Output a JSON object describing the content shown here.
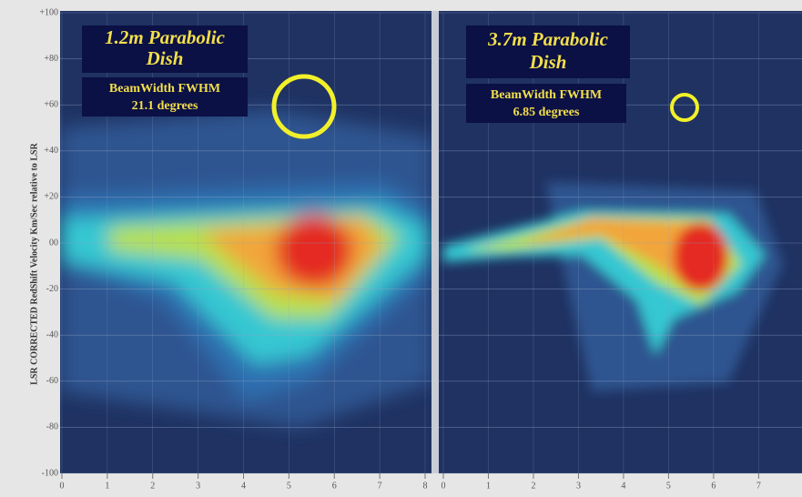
{
  "chart_data": [
    {
      "type": "contour",
      "title": [
        "1.2m Parabolic",
        "Dish"
      ],
      "annotation": [
        "BeamWidth FWHM",
        "21.1 degrees"
      ],
      "ylabel": "LSR CORRECTED RedShift Velocity Km/Sec   relative to  LSR",
      "xlim": [
        0,
        8
      ],
      "xticks": [
        0,
        1,
        2,
        3,
        4,
        5,
        6,
        7,
        8
      ],
      "ylim": [
        -100,
        100
      ],
      "yticks": [
        {
          "value": -100,
          "label": "-100"
        },
        {
          "value": -80,
          "label": "-80"
        },
        {
          "value": -60,
          "label": "-60"
        },
        {
          "value": -40,
          "label": "-40"
        },
        {
          "value": -20,
          "label": "-20"
        },
        {
          "value": 0,
          "label": "00"
        },
        {
          "value": 20,
          "label": "+20"
        },
        {
          "value": 40,
          "label": "+40"
        },
        {
          "value": 60,
          "label": "+60"
        },
        {
          "value": 80,
          "label": "+80"
        },
        {
          "value": 100,
          "label": "+100"
        }
      ]
    },
    {
      "type": "contour",
      "title": [
        "3.7m Parabolic",
        "Dish"
      ],
      "annotation": [
        "BeamWidth FWHM",
        "6.85  degrees"
      ],
      "xlim": [
        0,
        7.7
      ],
      "xticks": [
        0,
        1,
        2,
        3,
        4,
        5,
        6,
        7
      ],
      "ylim": [
        -100,
        100
      ]
    }
  ]
}
